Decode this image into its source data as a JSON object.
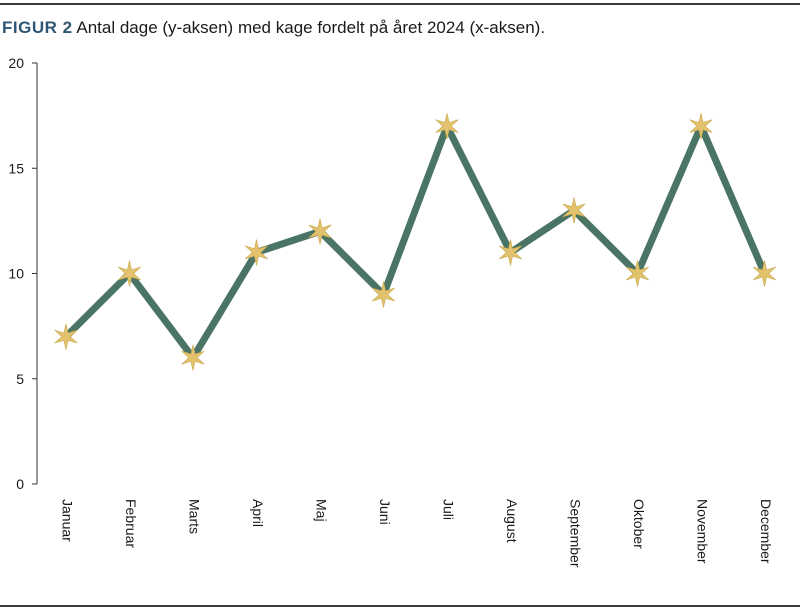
{
  "caption": {
    "label": "FIGUR 2",
    "text": "Antal dage (y-aksen) med kage fordelt på året 2024 (x-aksen)."
  },
  "colors": {
    "line": "#4a7565",
    "marker": "#e3c26d",
    "marker_stroke": "#c9a84f",
    "label": "#2f5673"
  },
  "chart_data": {
    "type": "line",
    "title": "",
    "xlabel": "",
    "ylabel": "",
    "categories": [
      "Januar",
      "Februar",
      "Marts",
      "April",
      "Maj",
      "Juni",
      "Juli",
      "August",
      "September",
      "Oktober",
      "November",
      "December"
    ],
    "series": [
      {
        "values": [
          7,
          10,
          6,
          11,
          12,
          9,
          17,
          11,
          13,
          10,
          17,
          10
        ],
        "marker": "star"
      }
    ],
    "ylim": [
      0,
      20
    ],
    "yticks": [
      0,
      5,
      10,
      15,
      20
    ],
    "grid": false,
    "legend": "none"
  }
}
